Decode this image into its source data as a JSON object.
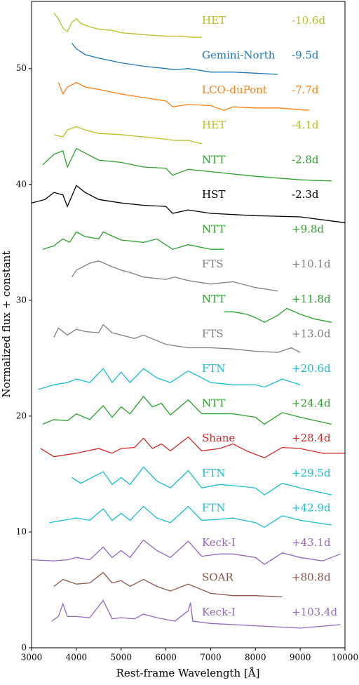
{
  "chart_data": {
    "type": "line",
    "xlabel": "Rest-frame Wavelength [Å]",
    "ylabel": "Normalized flux + constant",
    "xlim": [
      3000,
      10000
    ],
    "ylim": [
      0,
      55.8
    ],
    "xticks": [
      3000,
      4000,
      5000,
      6000,
      7000,
      8000,
      9000,
      10000
    ],
    "yticks": [
      0,
      10,
      20,
      30,
      40,
      50
    ],
    "series": [
      {
        "name": "HET",
        "phase": "-10.6d",
        "color": "#bcbd22",
        "x": [
          3500,
          3600,
          3700,
          3800,
          3900,
          4000,
          4100,
          4300,
          4500,
          4800,
          5000,
          5300,
          5600,
          6000,
          6300,
          6600,
          6800
        ],
        "values": [
          54.8,
          54.3,
          53.5,
          53.2,
          54.0,
          54.3,
          53.9,
          53.6,
          53.4,
          53.3,
          53.1,
          53.0,
          52.9,
          52.8,
          52.8,
          52.7,
          52.7
        ]
      },
      {
        "name": "Gemini-North",
        "phase": "-9.5d",
        "color": "#1f77b4",
        "x": [
          3900,
          4000,
          4200,
          4500,
          5000,
          5500,
          6000,
          6200,
          6500,
          7000,
          7500,
          8000,
          8500
        ],
        "values": [
          52.2,
          51.7,
          51.2,
          50.9,
          50.5,
          50.2,
          50.0,
          49.9,
          50.0,
          49.7,
          49.7,
          49.6,
          49.5
        ]
      },
      {
        "name": "LCO-duPont",
        "phase": "-7.7d",
        "color": "#ff7f0e",
        "x": [
          3600,
          3700,
          3800,
          4000,
          4200,
          4500,
          5000,
          5500,
          6000,
          6150,
          6500,
          7000,
          7300,
          7500,
          8000,
          8500,
          9200
        ],
        "values": [
          48.8,
          47.8,
          48.4,
          48.8,
          48.4,
          48.2,
          47.8,
          47.5,
          47.2,
          46.7,
          46.9,
          46.8,
          46.4,
          46.7,
          46.6,
          46.6,
          46.4
        ]
      },
      {
        "name": "HET",
        "phase": "-4.1d",
        "color": "#bcbd22",
        "x": [
          3500,
          3700,
          3800,
          4000,
          4200,
          4500,
          5000,
          5500,
          6000,
          6200,
          6500,
          6800
        ],
        "values": [
          44.3,
          44.1,
          44.7,
          45.0,
          44.7,
          44.4,
          44.3,
          44.1,
          43.9,
          43.8,
          43.8,
          43.5
        ]
      },
      {
        "name": "NTT",
        "phase": "-2.8d",
        "color": "#2ca02c",
        "x": [
          3250,
          3500,
          3700,
          3800,
          4000,
          4200,
          4500,
          5000,
          5500,
          6000,
          6150,
          6500,
          7000,
          8000,
          9000,
          9700
        ],
        "values": [
          41.7,
          42.6,
          42.9,
          41.5,
          43.1,
          42.7,
          42.1,
          41.9,
          41.5,
          41.4,
          40.8,
          41.3,
          41.1,
          40.7,
          40.4,
          40.3
        ]
      },
      {
        "name": "HST",
        "phase": "-2.3d",
        "color": "#000000",
        "x": [
          3000,
          3300,
          3500,
          3700,
          3800,
          4000,
          4200,
          4500,
          5000,
          5500,
          6000,
          6150,
          6500,
          7000,
          8000,
          9000,
          10000
        ],
        "values": [
          38.4,
          38.7,
          39.3,
          39.1,
          38.1,
          39.9,
          39.3,
          38.7,
          38.4,
          38.2,
          38.1,
          37.5,
          37.8,
          37.5,
          37.3,
          37.2,
          36.7
        ]
      },
      {
        "name": "NTT",
        "phase": "+9.8d",
        "color": "#2ca02c",
        "x": [
          3250,
          3500,
          3700,
          3850,
          4000,
          4200,
          4500,
          4600,
          5000,
          5500,
          5800,
          6150,
          6500,
          7000,
          7300
        ],
        "values": [
          34.4,
          34.7,
          35.3,
          35.0,
          35.9,
          35.5,
          35.3,
          35.9,
          35.2,
          35.0,
          35.3,
          34.4,
          34.8,
          34.4,
          34.4
        ]
      },
      {
        "name": "FTS",
        "phase": "+10.1d",
        "color": "#7f7f7f",
        "x": [
          3900,
          4000,
          4300,
          4500,
          4800,
          5000,
          5200,
          5500,
          6000,
          6200,
          6500,
          7000,
          7500,
          8000,
          8500
        ],
        "values": [
          32.0,
          32.6,
          33.2,
          33.4,
          32.9,
          32.6,
          32.4,
          32.0,
          31.8,
          32.0,
          31.7,
          31.4,
          31.6,
          31.1,
          30.8
        ]
      },
      {
        "name": "NTT",
        "phase": "+11.8d",
        "color": "#2ca02c",
        "x": [
          7300,
          7500,
          7800,
          8000,
          8200,
          8500,
          8700,
          9000,
          9300,
          9700
        ],
        "values": [
          29.0,
          29.0,
          28.8,
          28.5,
          28.1,
          28.7,
          29.3,
          28.8,
          28.4,
          28.1
        ]
      },
      {
        "name": "FTS",
        "phase": "+13.0d",
        "color": "#7f7f7f",
        "x": [
          3500,
          3600,
          3800,
          4000,
          4200,
          4500,
          4600,
          4800,
          5000,
          5300,
          5500,
          6000,
          6500,
          7000,
          7500,
          8000,
          8500,
          8800,
          9000
        ],
        "values": [
          26.8,
          27.6,
          27.0,
          27.5,
          27.3,
          27.2,
          27.9,
          27.2,
          27.0,
          26.7,
          27.0,
          26.2,
          25.9,
          25.9,
          25.8,
          25.6,
          25.5,
          25.9,
          25.5
        ]
      },
      {
        "name": "FTN",
        "phase": "+20.6d",
        "color": "#17becf",
        "x": [
          3150,
          3500,
          3800,
          4000,
          4300,
          4600,
          4800,
          5000,
          5200,
          5500,
          5800,
          6100,
          6500,
          7000,
          7500,
          8000,
          8200,
          8600,
          9000
        ],
        "values": [
          22.3,
          22.7,
          22.9,
          23.2,
          22.9,
          24.1,
          22.9,
          23.8,
          22.9,
          24.1,
          23.3,
          22.9,
          23.9,
          22.9,
          22.7,
          22.7,
          22.5,
          23.2,
          22.7
        ]
      },
      {
        "name": "NTT",
        "phase": "+24.4d",
        "color": "#2ca02c",
        "x": [
          3250,
          3500,
          3800,
          4000,
          4300,
          4600,
          4800,
          5000,
          5200,
          5500,
          5700,
          5900,
          6100,
          6500,
          6800,
          7200,
          7500,
          8000,
          8200,
          8600,
          9000,
          9700
        ],
        "values": [
          19.3,
          19.7,
          19.6,
          20.2,
          19.7,
          20.9,
          19.9,
          20.8,
          20.2,
          21.7,
          20.8,
          21.1,
          20.1,
          21.4,
          20.2,
          20.2,
          20.2,
          19.9,
          19.3,
          20.3,
          19.9,
          19.3
        ]
      },
      {
        "name": "Shane",
        "phase": "+28.4d",
        "color": "#d62728",
        "x": [
          3200,
          3500,
          4000,
          4500,
          4800,
          5000,
          5300,
          5500,
          5700,
          5900,
          6100,
          6500,
          6800,
          7200,
          7500,
          7800,
          8200,
          8600,
          9000,
          9500,
          10000
        ],
        "values": [
          17.2,
          16.5,
          16.8,
          17.2,
          16.8,
          17.2,
          17.3,
          18.1,
          17.2,
          17.6,
          17.0,
          18.2,
          17.0,
          17.2,
          17.6,
          17.0,
          16.4,
          17.3,
          17.2,
          16.8,
          16.8
        ]
      },
      {
        "name": "FTN",
        "phase": "+29.5d",
        "color": "#17becf",
        "x": [
          3900,
          4100,
          4300,
          4600,
          4800,
          5000,
          5200,
          5500,
          5800,
          6100,
          6500,
          6800,
          7200,
          7500,
          8000,
          8200,
          8600,
          9000,
          9700
        ],
        "values": [
          14.7,
          14.2,
          14.6,
          15.2,
          14.1,
          14.7,
          14.1,
          15.6,
          14.4,
          13.8,
          15.3,
          13.8,
          14.1,
          14.0,
          13.8,
          13.2,
          14.2,
          13.8,
          13.2
        ]
      },
      {
        "name": "FTN",
        "phase": "+42.9d",
        "color": "#17becf",
        "x": [
          3400,
          3700,
          4000,
          4300,
          4600,
          4800,
          5000,
          5200,
          5500,
          5800,
          6100,
          6500,
          6800,
          7200,
          7500,
          8000,
          8200,
          8600,
          9000,
          9700
        ],
        "values": [
          10.8,
          11.0,
          11.2,
          11.0,
          12.0,
          11.0,
          11.6,
          11.0,
          12.2,
          11.2,
          10.8,
          12.2,
          11.0,
          11.1,
          11.2,
          10.8,
          10.4,
          11.4,
          11.0,
          10.6
        ]
      },
      {
        "name": "Keck-I",
        "phase": "+43.1d",
        "color": "#9467bd",
        "x": [
          3000,
          3500,
          3800,
          4000,
          4300,
          4600,
          4800,
          5000,
          5200,
          5500,
          5800,
          6100,
          6500,
          6800,
          7200,
          7500,
          8000,
          8200,
          8600,
          9000,
          9500,
          9900
        ],
        "values": [
          7.6,
          7.5,
          7.6,
          7.8,
          7.6,
          8.7,
          7.8,
          8.4,
          7.8,
          9.3,
          8.4,
          7.8,
          9.2,
          7.9,
          8.1,
          8.1,
          7.8,
          7.2,
          8.2,
          7.8,
          7.5,
          8.1
        ]
      },
      {
        "name": "SOAR",
        "phase": "+80.8d",
        "color": "#8c564b",
        "x": [
          3500,
          3700,
          4000,
          4300,
          4600,
          4800,
          5000,
          5200,
          5500,
          5800,
          6100,
          6500,
          7000,
          7500,
          8000,
          8600
        ],
        "values": [
          5.3,
          5.9,
          5.5,
          5.6,
          6.5,
          5.6,
          5.8,
          5.3,
          5.9,
          5.3,
          4.9,
          5.5,
          4.7,
          4.5,
          4.5,
          4.4
        ]
      },
      {
        "name": "Keck-I",
        "phase": "+103.4d",
        "color": "#9467bd",
        "x": [
          3450,
          3600,
          3700,
          3800,
          4000,
          4300,
          4600,
          4800,
          5000,
          5300,
          5500,
          5800,
          6200,
          6500,
          6550,
          6600,
          7000,
          8000,
          9000,
          9900
        ],
        "values": [
          2.3,
          2.7,
          3.8,
          2.7,
          2.7,
          2.6,
          4.1,
          2.5,
          2.6,
          2.5,
          2.9,
          2.6,
          2.3,
          3.2,
          3.9,
          2.3,
          2.1,
          1.9,
          1.7,
          2.0
        ]
      }
    ]
  }
}
